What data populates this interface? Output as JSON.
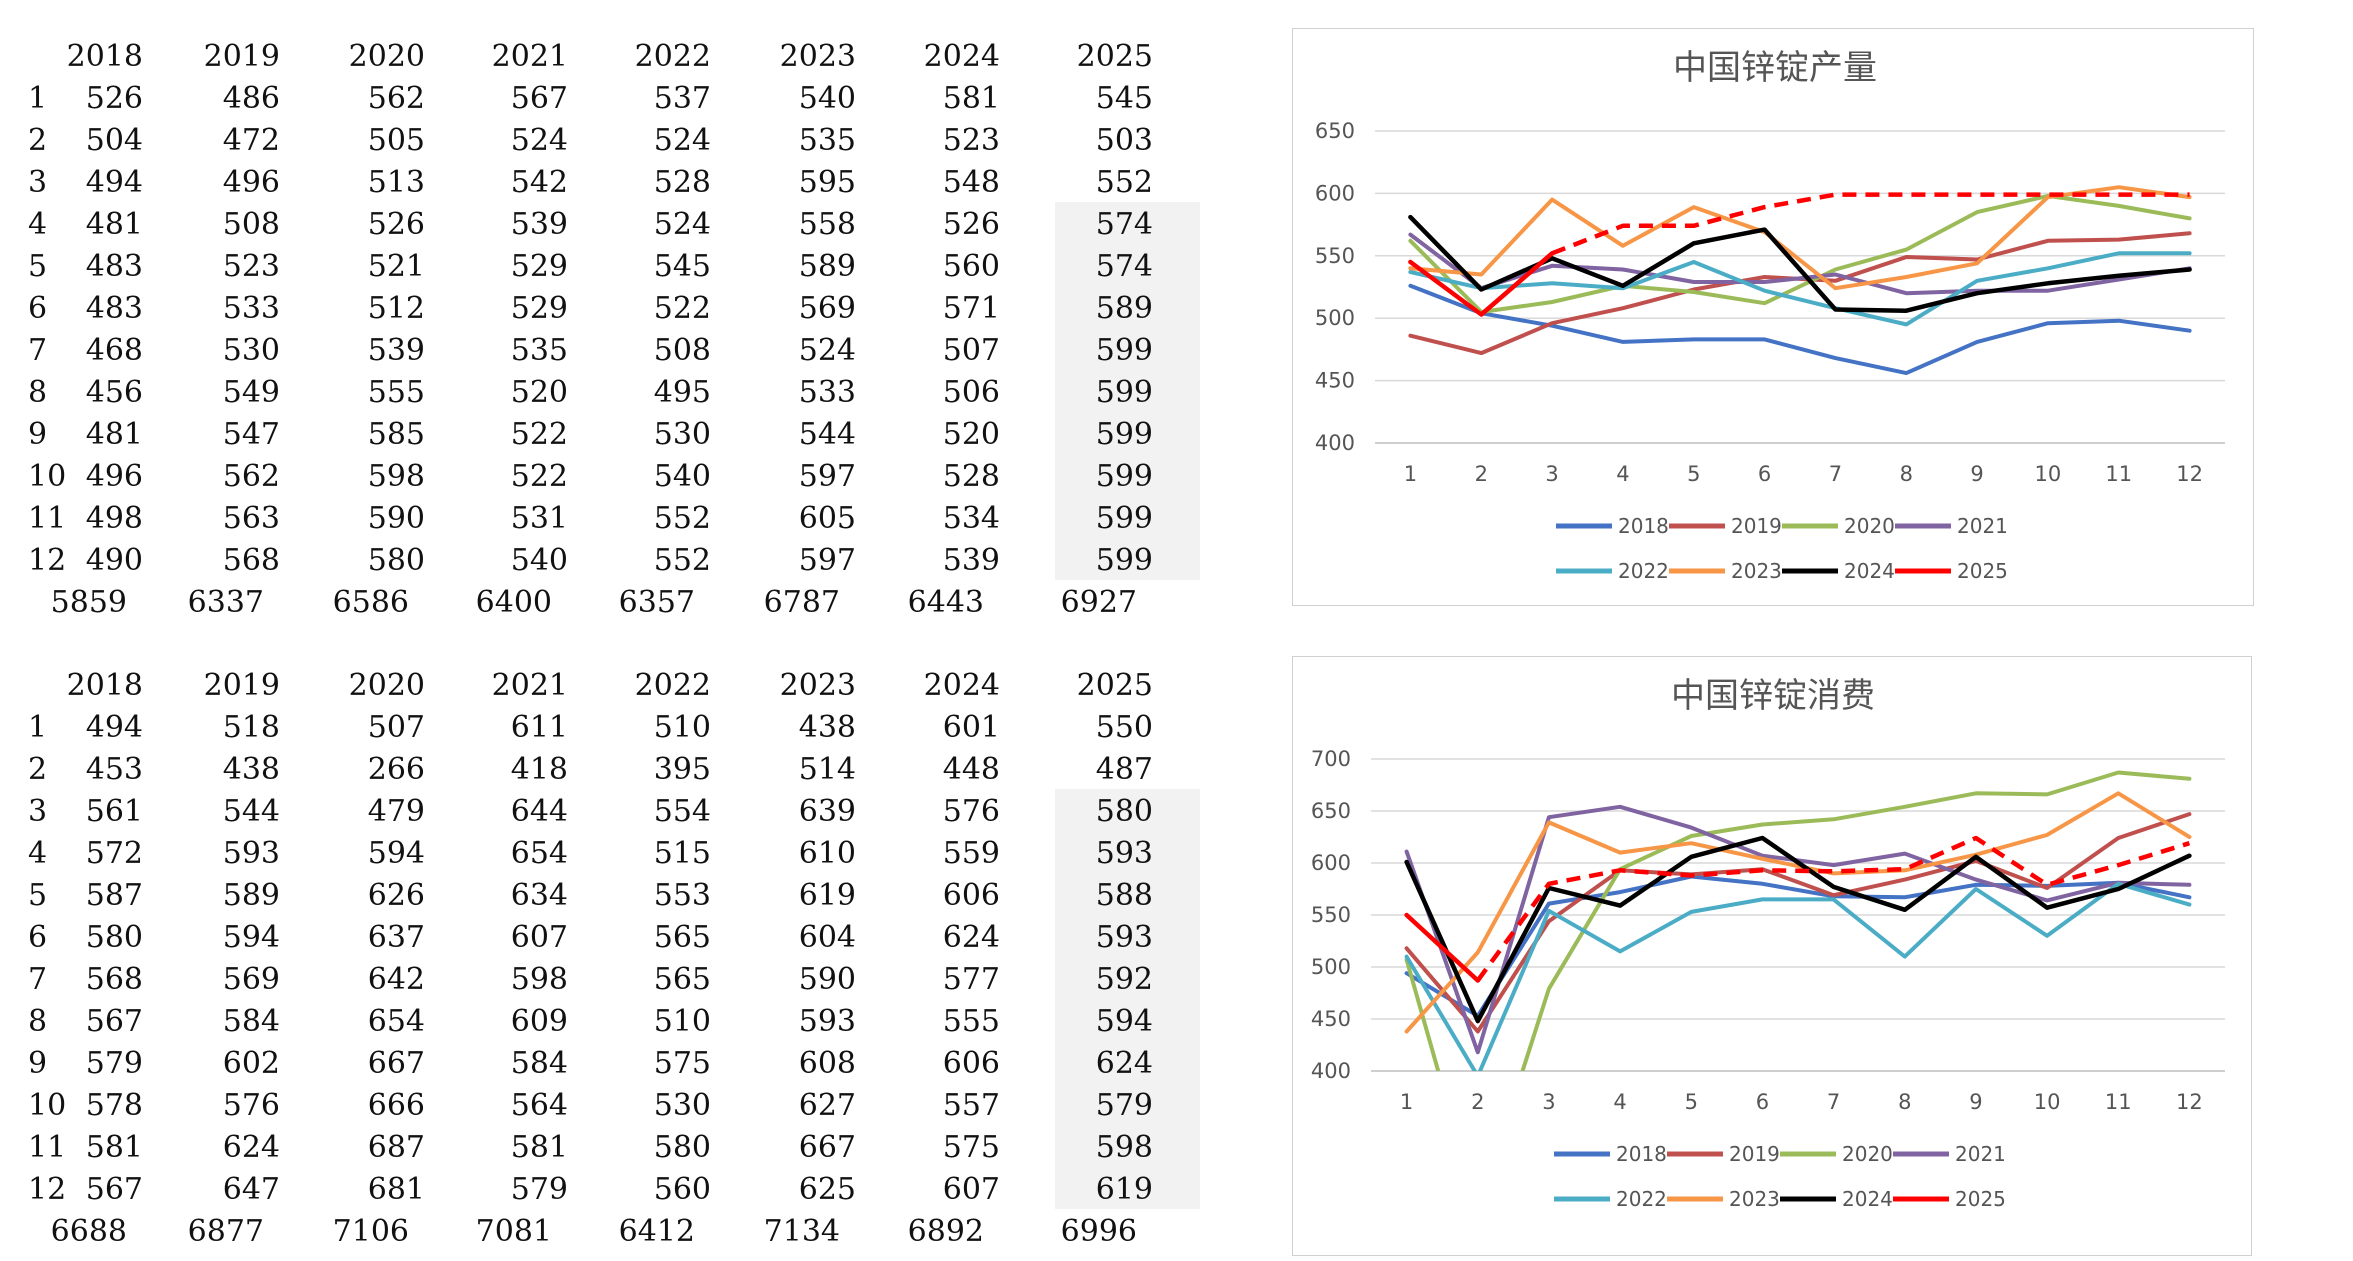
{
  "tables": [
    {
      "headers": [
        "2018",
        "2019",
        "2020",
        "2021",
        "2022",
        "2023",
        "2024",
        "2025"
      ],
      "rows": [
        {
          "month": "1",
          "values": [
            "526",
            "486",
            "562",
            "567",
            "537",
            "540",
            "581",
            "545"
          ]
        },
        {
          "month": "2",
          "values": [
            "504",
            "472",
            "505",
            "524",
            "524",
            "535",
            "523",
            "503"
          ]
        },
        {
          "month": "3",
          "values": [
            "494",
            "496",
            "513",
            "542",
            "528",
            "595",
            "548",
            "552"
          ]
        },
        {
          "month": "4",
          "values": [
            "481",
            "508",
            "526",
            "539",
            "524",
            "558",
            "526",
            "574"
          ]
        },
        {
          "month": "5",
          "values": [
            "483",
            "523",
            "521",
            "529",
            "545",
            "589",
            "560",
            "574"
          ]
        },
        {
          "month": "6",
          "values": [
            "483",
            "533",
            "512",
            "529",
            "522",
            "569",
            "571",
            "589"
          ]
        },
        {
          "month": "7",
          "values": [
            "468",
            "530",
            "539",
            "535",
            "508",
            "524",
            "507",
            "599"
          ]
        },
        {
          "month": "8",
          "values": [
            "456",
            "549",
            "555",
            "520",
            "495",
            "533",
            "506",
            "599"
          ]
        },
        {
          "month": "9",
          "values": [
            "481",
            "547",
            "585",
            "522",
            "530",
            "544",
            "520",
            "599"
          ]
        },
        {
          "month": "10",
          "values": [
            "496",
            "562",
            "598",
            "522",
            "540",
            "597",
            "528",
            "599"
          ]
        },
        {
          "month": "11",
          "values": [
            "498",
            "563",
            "590",
            "531",
            "552",
            "605",
            "534",
            "599"
          ]
        },
        {
          "month": "12",
          "values": [
            "490",
            "568",
            "580",
            "540",
            "552",
            "597",
            "539",
            "599"
          ]
        }
      ],
      "totals": [
        "5859",
        "6337",
        "6586",
        "6400",
        "6357",
        "6787",
        "6443",
        "6927"
      ],
      "shaded_from_row": 4
    },
    {
      "headers": [
        "2018",
        "2019",
        "2020",
        "2021",
        "2022",
        "2023",
        "2024",
        "2025"
      ],
      "rows": [
        {
          "month": "1",
          "values": [
            "494",
            "518",
            "507",
            "611",
            "510",
            "438",
            "601",
            "550"
          ]
        },
        {
          "month": "2",
          "values": [
            "453",
            "438",
            "266",
            "418",
            "395",
            "514",
            "448",
            "487"
          ]
        },
        {
          "month": "3",
          "values": [
            "561",
            "544",
            "479",
            "644",
            "554",
            "639",
            "576",
            "580"
          ]
        },
        {
          "month": "4",
          "values": [
            "572",
            "593",
            "594",
            "654",
            "515",
            "610",
            "559",
            "593"
          ]
        },
        {
          "month": "5",
          "values": [
            "587",
            "589",
            "626",
            "634",
            "553",
            "619",
            "606",
            "588"
          ]
        },
        {
          "month": "6",
          "values": [
            "580",
            "594",
            "637",
            "607",
            "565",
            "604",
            "624",
            "593"
          ]
        },
        {
          "month": "7",
          "values": [
            "568",
            "569",
            "642",
            "598",
            "565",
            "590",
            "577",
            "592"
          ]
        },
        {
          "month": "8",
          "values": [
            "567",
            "584",
            "654",
            "609",
            "510",
            "593",
            "555",
            "594"
          ]
        },
        {
          "month": "9",
          "values": [
            "579",
            "602",
            "667",
            "584",
            "575",
            "608",
            "606",
            "624"
          ]
        },
        {
          "month": "10",
          "values": [
            "578",
            "576",
            "666",
            "564",
            "530",
            "627",
            "557",
            "579"
          ]
        },
        {
          "month": "11",
          "values": [
            "581",
            "624",
            "687",
            "581",
            "580",
            "667",
            "575",
            "598"
          ]
        },
        {
          "month": "12",
          "values": [
            "567",
            "647",
            "681",
            "579",
            "560",
            "625",
            "607",
            "619"
          ]
        }
      ],
      "totals": [
        "6688",
        "6877",
        "7106",
        "7081",
        "6412",
        "7134",
        "6892",
        "6996"
      ],
      "shaded_from_row": 3
    }
  ],
  "chart_data": [
    {
      "type": "line",
      "title": "中国锌锭产量",
      "x": [
        "1",
        "2",
        "3",
        "4",
        "5",
        "6",
        "7",
        "8",
        "9",
        "10",
        "11",
        "12"
      ],
      "ylim": [
        400,
        650
      ],
      "yticks": [
        400,
        450,
        500,
        550,
        600,
        650
      ],
      "grid": true,
      "legend_position": "bottom",
      "series": [
        {
          "name": "2018",
          "color": "#4472c4",
          "dashed": false,
          "values": [
            526,
            504,
            494,
            481,
            483,
            483,
            468,
            456,
            481,
            496,
            498,
            490
          ]
        },
        {
          "name": "2019",
          "color": "#c0504d",
          "dashed": false,
          "values": [
            486,
            472,
            496,
            508,
            523,
            533,
            530,
            549,
            547,
            562,
            563,
            568
          ]
        },
        {
          "name": "2020",
          "color": "#9bbb59",
          "dashed": false,
          "values": [
            562,
            505,
            513,
            526,
            521,
            512,
            539,
            555,
            585,
            598,
            590,
            580
          ]
        },
        {
          "name": "2021",
          "color": "#8064a2",
          "dashed": false,
          "values": [
            567,
            524,
            542,
            539,
            529,
            529,
            535,
            520,
            522,
            522,
            531,
            540
          ]
        },
        {
          "name": "2022",
          "color": "#4bacc6",
          "dashed": false,
          "values": [
            537,
            524,
            528,
            524,
            545,
            522,
            508,
            495,
            530,
            540,
            552,
            552
          ]
        },
        {
          "name": "2023",
          "color": "#f79646",
          "dashed": false,
          "values": [
            540,
            535,
            595,
            558,
            589,
            569,
            524,
            533,
            544,
            597,
            605,
            597
          ]
        },
        {
          "name": "2024",
          "color": "#000000",
          "dashed": false,
          "values": [
            581,
            523,
            548,
            526,
            560,
            571,
            507,
            506,
            520,
            528,
            534,
            539
          ]
        },
        {
          "name": "2025",
          "color": "#ff0000",
          "dashed": true,
          "solid_points": 3,
          "values": [
            545,
            503,
            552,
            574,
            574,
            589,
            599,
            599,
            599,
            599,
            599,
            599
          ]
        }
      ]
    },
    {
      "type": "line",
      "title": "中国锌锭消费",
      "x": [
        "1",
        "2",
        "3",
        "4",
        "5",
        "6",
        "7",
        "8",
        "9",
        "10",
        "11",
        "12"
      ],
      "ylim": [
        400,
        700
      ],
      "yticks": [
        400,
        450,
        500,
        550,
        600,
        650,
        700
      ],
      "grid": true,
      "legend_position": "bottom",
      "series": [
        {
          "name": "2018",
          "color": "#4472c4",
          "dashed": false,
          "values": [
            494,
            453,
            561,
            572,
            587,
            580,
            568,
            567,
            579,
            578,
            581,
            567
          ]
        },
        {
          "name": "2019",
          "color": "#c0504d",
          "dashed": false,
          "values": [
            518,
            438,
            544,
            593,
            589,
            594,
            569,
            584,
            602,
            576,
            624,
            647
          ]
        },
        {
          "name": "2020",
          "color": "#9bbb59",
          "dashed": false,
          "values": [
            507,
            266,
            479,
            594,
            626,
            637,
            642,
            654,
            667,
            666,
            687,
            681
          ]
        },
        {
          "name": "2021",
          "color": "#8064a2",
          "dashed": false,
          "values": [
            611,
            418,
            644,
            654,
            634,
            607,
            598,
            609,
            584,
            564,
            581,
            579
          ]
        },
        {
          "name": "2022",
          "color": "#4bacc6",
          "dashed": false,
          "values": [
            510,
            395,
            554,
            515,
            553,
            565,
            565,
            510,
            575,
            530,
            580,
            560
          ]
        },
        {
          "name": "2023",
          "color": "#f79646",
          "dashed": false,
          "values": [
            438,
            514,
            639,
            610,
            619,
            604,
            590,
            593,
            608,
            627,
            667,
            625
          ]
        },
        {
          "name": "2024",
          "color": "#000000",
          "dashed": false,
          "values": [
            601,
            448,
            576,
            559,
            606,
            624,
            577,
            555,
            606,
            557,
            575,
            607
          ]
        },
        {
          "name": "2025",
          "color": "#ff0000",
          "dashed": true,
          "solid_points": 2,
          "values": [
            550,
            487,
            580,
            593,
            588,
            593,
            592,
            594,
            624,
            579,
            598,
            619
          ]
        }
      ]
    }
  ]
}
